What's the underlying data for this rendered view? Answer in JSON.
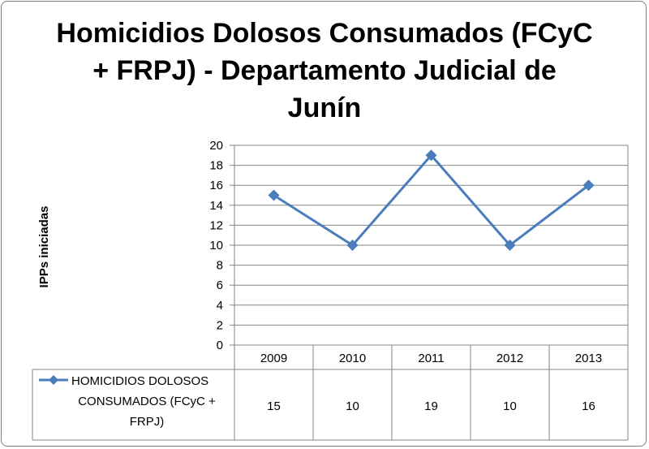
{
  "chart_data": {
    "type": "line",
    "title_lines": [
      "Homicidios Dolosos Consumados (FCyC",
      "+ FRPJ) - Departamento Judicial de",
      "Junín"
    ],
    "ylabel": "IPPs iniciadas",
    "xlabel": "",
    "categories": [
      "2009",
      "2010",
      "2011",
      "2012",
      "2013"
    ],
    "ylim": [
      0,
      20
    ],
    "yticks": [
      0,
      2,
      4,
      6,
      8,
      10,
      12,
      14,
      16,
      18,
      20
    ],
    "grid": true,
    "legend_placement": "data-table",
    "series": [
      {
        "name": "HOMICIDIOS DOLOSOS CONSUMADOS (FCyC + FRPJ)",
        "name_lines": [
          "HOMICIDIOS DOLOSOS",
          "CONSUMADOS (FCyC +",
          "FRPJ)"
        ],
        "values": [
          15,
          10,
          19,
          10,
          16
        ],
        "color": "#4a7ebb",
        "marker": "diamond"
      }
    ],
    "data_table": true
  }
}
